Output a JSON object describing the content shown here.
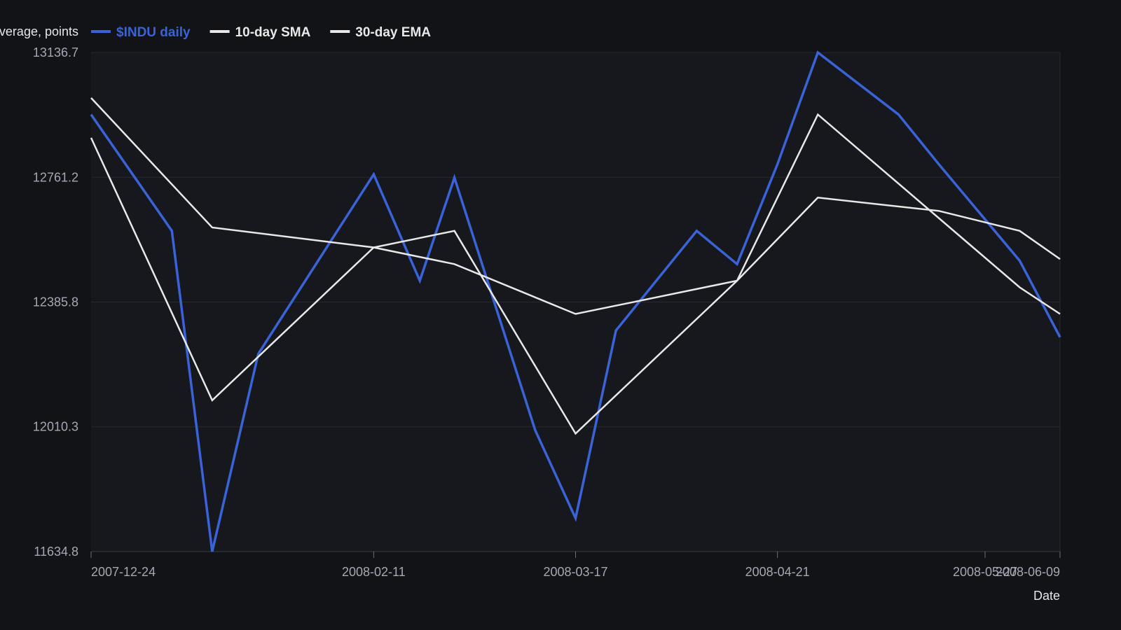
{
  "chart_data": {
    "type": "line",
    "title": "",
    "xlabel": "Date",
    "ylabel": "Dow Jones Industrial Average, points",
    "x": [
      "2007-12-24",
      "2008-01-07",
      "2008-01-14",
      "2008-01-22",
      "2008-02-11",
      "2008-02-19",
      "2008-02-25",
      "2008-03-10",
      "2008-03-17",
      "2008-03-24",
      "2008-04-07",
      "2008-04-14",
      "2008-04-21",
      "2008-04-28",
      "2008-05-12",
      "2008-05-19",
      "2008-06-02",
      "2008-06-09"
    ],
    "x_ticks": [
      "2007-12-24",
      "2008-02-11",
      "2008-03-17",
      "2008-04-21",
      "2008-05-27",
      "2008-06-09"
    ],
    "y_ticks": [
      11634.8,
      12010.3,
      12385.8,
      12761.2,
      13136.7
    ],
    "ylim": [
      11634.8,
      13136.7
    ],
    "grid": true,
    "legend_position": "top",
    "series": [
      {
        "name": "$INDU daily",
        "color": "#3a63d8",
        "values": [
          12950,
          12600,
          11635,
          12230,
          12770,
          12450,
          12760,
          12000,
          11735,
          12300,
          12600,
          12500,
          12800,
          13136.7,
          12950,
          12800,
          12510,
          12280
        ]
      },
      {
        "name": "10-day SMA",
        "color": "#e8e8e8",
        "values": [
          12880,
          null,
          12090,
          null,
          12550,
          null,
          12600,
          null,
          11990,
          null,
          null,
          12450,
          null,
          12950,
          null,
          null,
          12430,
          12350
        ]
      },
      {
        "name": "30-day EMA",
        "color": "#e8e8e8",
        "values": [
          13000,
          null,
          12610,
          null,
          12550,
          null,
          12500,
          null,
          12350,
          null,
          null,
          12450,
          null,
          12700,
          null,
          12660,
          12600,
          12515
        ]
      }
    ]
  }
}
